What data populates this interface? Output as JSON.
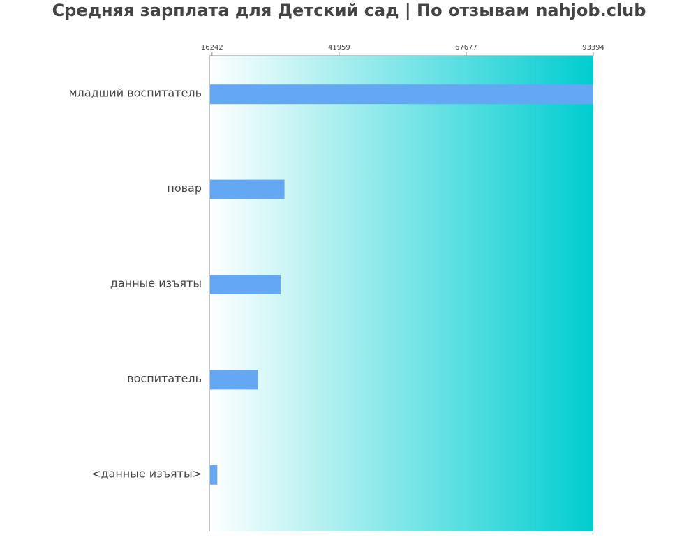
{
  "chart_data": {
    "type": "bar",
    "orientation": "horizontal",
    "title": "Средняя зарплата для Детский сад | По отзывам nahjob.club",
    "categories": [
      "младший воспитатель",
      "повар",
      "данные изъяты",
      "воспитатель",
      "<данные изъяты>"
    ],
    "values": [
      93394,
      30900,
      30100,
      25500,
      17300
    ],
    "xlim": [
      15700,
      93394
    ],
    "tick_labels": [
      "16242",
      "41959",
      "67677",
      "93394"
    ],
    "grid": false,
    "legend": "none",
    "colors": {
      "bar": "#64a8f3",
      "background_start": "#ffffff",
      "background_end": "#00cdd0",
      "axis": "#888888",
      "text": "#444444"
    }
  }
}
